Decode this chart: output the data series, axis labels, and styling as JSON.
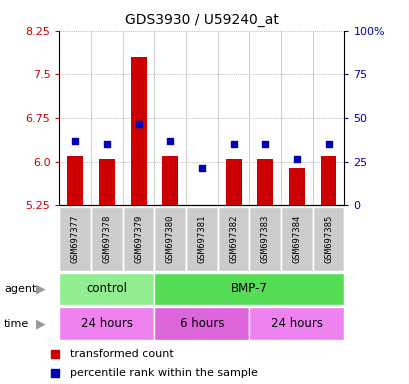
{
  "title": "GDS3930 / U59240_at",
  "samples": [
    "GSM697377",
    "GSM697378",
    "GSM697379",
    "GSM697380",
    "GSM697381",
    "GSM697382",
    "GSM697383",
    "GSM697384",
    "GSM697385"
  ],
  "red_values": [
    6.1,
    6.05,
    7.8,
    6.1,
    5.22,
    6.05,
    6.05,
    5.9,
    6.1
  ],
  "blue_values": [
    6.35,
    6.3,
    6.65,
    6.35,
    5.9,
    6.3,
    6.3,
    6.05,
    6.3
  ],
  "ymin": 5.25,
  "ymax": 8.25,
  "yticks_left": [
    5.25,
    6.0,
    6.75,
    7.5,
    8.25
  ],
  "yticks_right": [
    0,
    25,
    50,
    75,
    100
  ],
  "agent_groups": [
    {
      "label": "control",
      "start": 0,
      "end": 3,
      "color": "#90EE90"
    },
    {
      "label": "BMP-7",
      "start": 3,
      "end": 9,
      "color": "#55DD55"
    }
  ],
  "time_groups": [
    {
      "label": "24 hours",
      "start": 0,
      "end": 3,
      "color": "#EE82EE"
    },
    {
      "label": "6 hours",
      "start": 3,
      "end": 6,
      "color": "#DD66DD"
    },
    {
      "label": "24 hours",
      "start": 6,
      "end": 9,
      "color": "#EE82EE"
    }
  ],
  "bar_color": "#CC0000",
  "dot_color": "#0000BB",
  "bar_bottom": 5.25,
  "grid_color": "#888888",
  "tick_label_color_left": "#CC0000",
  "tick_label_color_right": "#0000BB",
  "legend_red": "transformed count",
  "legend_blue": "percentile rank within the sample",
  "sample_box_color": "#CCCCCC"
}
